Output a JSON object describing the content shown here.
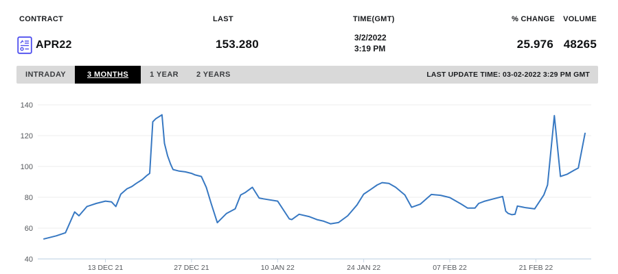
{
  "header": {
    "columns": {
      "contract": "CONTRACT",
      "last": "LAST",
      "time": "TIME(GMT)",
      "change": "% CHANGE",
      "volume": "VOLUME"
    },
    "contract_icon": "contract-document-icon",
    "contract_name": "APR22",
    "last_value": "153.280",
    "time_date": "3/2/2022",
    "time_clock": "3:19 PM",
    "percent_change": "25.976",
    "volume": "48265"
  },
  "tabs": {
    "items": [
      {
        "label": "INTRADAY",
        "active": false
      },
      {
        "label": "3 MONTHS",
        "active": true
      },
      {
        "label": "1 YEAR",
        "active": false
      },
      {
        "label": "2 YEARS",
        "active": false
      }
    ],
    "last_update": "LAST UPDATE TIME: 03-02-2022 3:29 PM GMT"
  },
  "colors": {
    "line": "#3778c2",
    "icon_blue": "#4d4dee",
    "tab_bar_bg": "#d9d9d9",
    "active_tab_bg": "#000000",
    "grid": "#ededed",
    "axis_line": "#b7cde1",
    "tick_mark": "#c6d5e3",
    "tick_label": "#55585c"
  },
  "chart_data": {
    "type": "line",
    "title": "",
    "xlabel": "",
    "ylabel": "",
    "legend_position": "none",
    "grid": true,
    "ylim": [
      40,
      140
    ],
    "y_ticks": [
      40,
      60,
      80,
      100,
      120,
      140
    ],
    "x_domain_days": [
      1,
      91
    ],
    "x_ticks": [
      {
        "day": 12,
        "label": "13 DEC 21"
      },
      {
        "day": 26,
        "label": "27 DEC 21"
      },
      {
        "day": 40,
        "label": "10 JAN 22"
      },
      {
        "day": 54,
        "label": "24 JAN 22"
      },
      {
        "day": 68,
        "label": "07 FEB 22"
      },
      {
        "day": 82,
        "label": "21 FEB 22"
      }
    ],
    "series": [
      {
        "name": "APR22 price",
        "points": [
          [
            2,
            53
          ],
          [
            4,
            55
          ],
          [
            5.5,
            57
          ],
          [
            7,
            70.5
          ],
          [
            7.7,
            68
          ],
          [
            9,
            74
          ],
          [
            10.5,
            76
          ],
          [
            12,
            77.5
          ],
          [
            13,
            77
          ],
          [
            13.7,
            74
          ],
          [
            14.5,
            82
          ],
          [
            15.5,
            85.5
          ],
          [
            16.3,
            87
          ],
          [
            17,
            89
          ],
          [
            18,
            91.5
          ],
          [
            18.7,
            94
          ],
          [
            19.2,
            95.5
          ],
          [
            19.7,
            129
          ],
          [
            20.2,
            131
          ],
          [
            21.2,
            133.5
          ],
          [
            21.6,
            115
          ],
          [
            22.1,
            107
          ],
          [
            22.6,
            101.5
          ],
          [
            23,
            98
          ],
          [
            24,
            97
          ],
          [
            25,
            96.5
          ],
          [
            26,
            95.5
          ],
          [
            26.6,
            94.5
          ],
          [
            27.6,
            93.5
          ],
          [
            28.4,
            86.5
          ],
          [
            29.2,
            76
          ],
          [
            30.2,
            63.5
          ],
          [
            31.7,
            69.5
          ],
          [
            33.1,
            72.5
          ],
          [
            34,
            81.5
          ],
          [
            34.7,
            83
          ],
          [
            35.9,
            86.5
          ],
          [
            37,
            79.5
          ],
          [
            37.7,
            79
          ],
          [
            40,
            77.5
          ],
          [
            41.9,
            66
          ],
          [
            42.3,
            65.5
          ],
          [
            43.5,
            69
          ],
          [
            45.1,
            67.5
          ],
          [
            46.4,
            65.5
          ],
          [
            47.5,
            64.5
          ],
          [
            48.6,
            62.8
          ],
          [
            49.9,
            63.6
          ],
          [
            51.4,
            68
          ],
          [
            52.9,
            75
          ],
          [
            54,
            82
          ],
          [
            55.1,
            85
          ],
          [
            56.2,
            88
          ],
          [
            57,
            89.5
          ],
          [
            58.1,
            89
          ],
          [
            59.2,
            86.5
          ],
          [
            60.7,
            81.5
          ],
          [
            61.8,
            73.5
          ],
          [
            63.2,
            75.5
          ],
          [
            65,
            81.8
          ],
          [
            66.5,
            81.3
          ],
          [
            68,
            79.8
          ],
          [
            69.9,
            75.5
          ],
          [
            70.9,
            73
          ],
          [
            72.1,
            73
          ],
          [
            72.7,
            76
          ],
          [
            73.7,
            77.5
          ],
          [
            75.1,
            79
          ],
          [
            76.6,
            80.5
          ],
          [
            77.1,
            71
          ],
          [
            77.5,
            69.5
          ],
          [
            78.1,
            68.7
          ],
          [
            78.6,
            69
          ],
          [
            79,
            74.3
          ],
          [
            80.4,
            73.2
          ],
          [
            81.8,
            72.5
          ],
          [
            83.3,
            81.5
          ],
          [
            83.9,
            88
          ],
          [
            85,
            133
          ],
          [
            86,
            93.5
          ],
          [
            87.1,
            95
          ],
          [
            88.2,
            97.5
          ],
          [
            88.9,
            99
          ],
          [
            90,
            121.5
          ]
        ]
      }
    ]
  }
}
